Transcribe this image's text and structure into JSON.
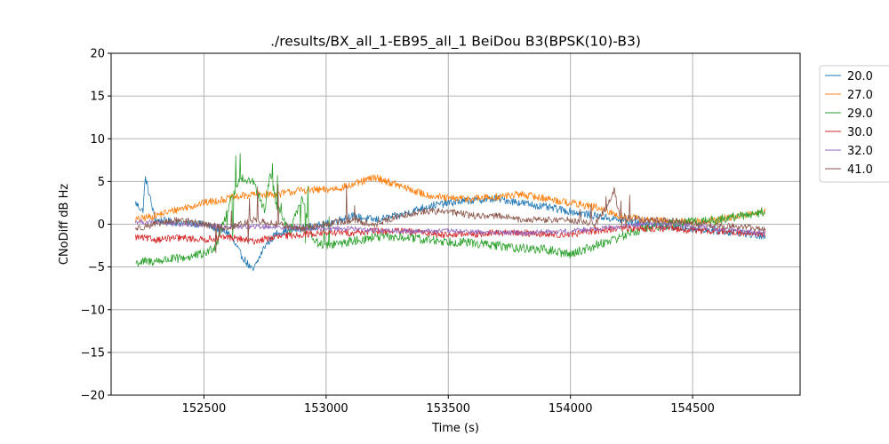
{
  "chart_data": {
    "type": "line",
    "title": "./results/BX_all_1-EB95_all_1 BeiDou B3(BPSK(10)-B3)",
    "xlabel": "Time (s)",
    "ylabel": "CNoDiff dB Hz",
    "xlim": [
      152120,
      154940
    ],
    "ylim": [
      -20,
      20
    ],
    "xticks": [
      152500,
      153000,
      153500,
      154000,
      154500
    ],
    "yticks": [
      -20,
      -15,
      -10,
      -5,
      0,
      5,
      10,
      15,
      20
    ],
    "xtick_labels": [
      "152500",
      "153000",
      "153500",
      "154000",
      "154500"
    ],
    "ytick_labels": [
      "−20",
      "−15",
      "−10",
      "−5",
      "0",
      "5",
      "10",
      "15",
      "20"
    ],
    "grid": true,
    "legend_position": "outside-top-right",
    "x_range": [
      152220,
      154800
    ],
    "series": [
      {
        "name": "20.0",
        "color": "#1f77b4",
        "x": [
          152220,
          152250,
          152260,
          152300,
          152400,
          152500,
          152600,
          152650,
          152700,
          152750,
          152800,
          152900,
          153000,
          153100,
          153200,
          153300,
          153400,
          153500,
          153600,
          153700,
          153800,
          153900,
          154000,
          154100,
          154200,
          154300,
          154400,
          154500,
          154600,
          154700,
          154800
        ],
        "y": [
          2.5,
          1.5,
          5.5,
          0.5,
          0.2,
          0.0,
          -1.0,
          -3.5,
          -5.5,
          -2.5,
          -1.0,
          -0.5,
          0.0,
          1.0,
          0.5,
          1.0,
          2.0,
          2.5,
          2.8,
          3.0,
          2.5,
          2.0,
          1.5,
          1.0,
          0.5,
          0.0,
          -0.3,
          -0.5,
          -0.8,
          -1.0,
          -1.5
        ]
      },
      {
        "name": "27.0",
        "color": "#ff7f0e",
        "x": [
          152220,
          152300,
          152400,
          152500,
          152600,
          152700,
          152800,
          152900,
          153000,
          153100,
          153200,
          153300,
          153400,
          153500,
          153600,
          153700,
          153800,
          153900,
          154000,
          154100,
          154200,
          154300,
          154400,
          154500,
          154600,
          154700,
          154800
        ],
        "y": [
          0.5,
          1.0,
          1.8,
          2.5,
          3.0,
          3.5,
          3.5,
          4.0,
          4.0,
          4.5,
          5.5,
          4.5,
          3.5,
          3.0,
          3.0,
          3.2,
          3.5,
          3.0,
          2.5,
          2.0,
          1.0,
          0.5,
          0.3,
          0.3,
          0.5,
          1.0,
          1.5
        ]
      },
      {
        "name": "29.0",
        "color": "#2ca02c",
        "x": [
          152220,
          152300,
          152400,
          152500,
          152550,
          152600,
          152650,
          152700,
          152750,
          152770,
          152800,
          152850,
          152900,
          152950,
          153000,
          153100,
          153200,
          153300,
          153400,
          153500,
          153600,
          153700,
          153800,
          153900,
          154000,
          154100,
          154200,
          154300,
          154400,
          154500,
          154600,
          154700,
          154800
        ],
        "y": [
          -4.5,
          -4.3,
          -4.0,
          -3.5,
          -2.5,
          2.0,
          5.5,
          5.0,
          1.5,
          6.0,
          2.0,
          -1.0,
          3.0,
          -2.0,
          -2.5,
          -2.0,
          -1.5,
          -1.5,
          -1.8,
          -2.0,
          -2.2,
          -2.5,
          -2.8,
          -3.0,
          -3.5,
          -2.5,
          -1.5,
          -0.5,
          0.0,
          0.3,
          0.5,
          1.0,
          1.5
        ]
      },
      {
        "name": "30.0",
        "color": "#d62728",
        "x": [
          152220,
          152300,
          152400,
          152500,
          152600,
          152700,
          152800,
          152900,
          153000,
          153100,
          153200,
          153300,
          153400,
          153500,
          153600,
          153700,
          153800,
          153900,
          154000,
          154100,
          154200,
          154300,
          154400,
          154500,
          154600,
          154700,
          154800
        ],
        "y": [
          -1.5,
          -1.8,
          -1.6,
          -1.8,
          -1.5,
          -2.0,
          -1.5,
          -1.2,
          -1.0,
          -1.0,
          -0.8,
          -0.8,
          -1.0,
          -1.2,
          -1.2,
          -1.0,
          -1.0,
          -1.2,
          -1.2,
          -0.8,
          -0.5,
          -0.5,
          -0.5,
          -0.7,
          -0.8,
          -1.0,
          -1.2
        ]
      },
      {
        "name": "32.0",
        "color": "#9467bd",
        "x": [
          152220,
          152300,
          152400,
          152500,
          152600,
          152700,
          152800,
          152900,
          153000,
          153100,
          153200,
          153300,
          153400,
          153500,
          153600,
          153700,
          153800,
          153900,
          154000,
          154100,
          154200,
          154300,
          154400,
          154500,
          154600,
          154700,
          154800
        ],
        "y": [
          0.3,
          0.2,
          0.0,
          -0.2,
          -0.3,
          -0.3,
          -0.3,
          -0.5,
          -0.5,
          -0.5,
          -0.7,
          -0.8,
          -0.8,
          -0.8,
          -0.9,
          -1.0,
          -1.0,
          -0.9,
          -0.8,
          -0.5,
          -0.3,
          0.0,
          0.0,
          -0.2,
          -0.5,
          -0.8,
          -1.0
        ]
      },
      {
        "name": "41.0",
        "color": "#8c564b",
        "x": [
          152220,
          152300,
          152400,
          152500,
          152600,
          152700,
          152800,
          152900,
          153000,
          153100,
          153200,
          153300,
          153400,
          153500,
          153600,
          153700,
          153800,
          153900,
          154000,
          154100,
          154150,
          154180,
          154200,
          154300,
          154400,
          154500,
          154600,
          154700,
          154800
        ],
        "y": [
          -0.5,
          0.0,
          0.5,
          0.0,
          -0.5,
          0.5,
          0.0,
          -0.5,
          0.0,
          0.5,
          0.0,
          1.0,
          1.5,
          1.5,
          1.0,
          1.0,
          0.5,
          0.5,
          0.5,
          0.0,
          2.0,
          4.0,
          1.0,
          0.5,
          0.5,
          0.0,
          -0.2,
          -0.3,
          -0.5
        ]
      }
    ]
  }
}
